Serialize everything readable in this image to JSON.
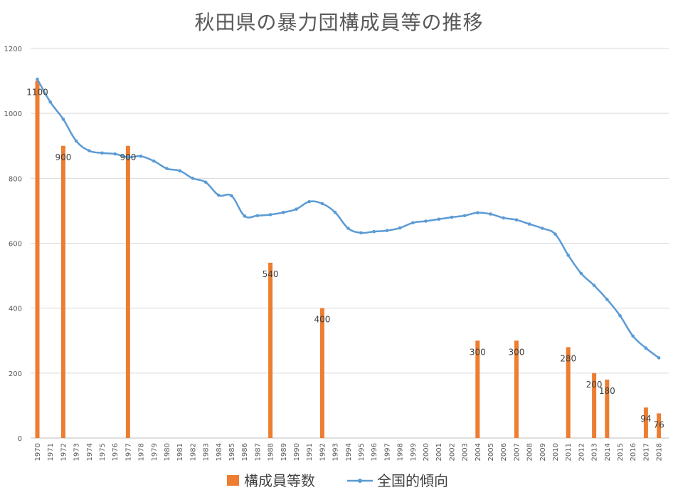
{
  "chart_data": {
    "type": "bar+line",
    "title": "秋田県の暴力団構成員等の推移",
    "ylim": [
      0,
      1200
    ],
    "yticks": [
      0,
      200,
      400,
      600,
      800,
      1000,
      1200
    ],
    "grid": true,
    "legend_position": "bottom",
    "colors": {
      "bar": "#ED7D31",
      "line": "#5B9BD5",
      "grid": "#D9D9D9",
      "axis": "#BFBFBF"
    },
    "categories": [
      "1970",
      "1971",
      "1972",
      "1973",
      "1974",
      "1975",
      "1976",
      "1977",
      "1978",
      "1979",
      "1980",
      "1981",
      "1982",
      "1983",
      "1984",
      "1985",
      "1986",
      "1987",
      "1988",
      "1989",
      "1990",
      "1991",
      "1992",
      "1993",
      "1994",
      "1995",
      "1996",
      "1997",
      "1998",
      "1999",
      "2000",
      "2001",
      "2002",
      "2003",
      "2004",
      "2005",
      "2006",
      "2007",
      "2008",
      "2009",
      "2010",
      "2011",
      "2012",
      "2013",
      "2014",
      "2015",
      "2016",
      "2017",
      "2018"
    ],
    "series": [
      {
        "name": "構成員等数",
        "type": "bar",
        "values": [
          1100,
          null,
          900,
          null,
          null,
          null,
          null,
          900,
          null,
          null,
          null,
          null,
          null,
          null,
          null,
          null,
          null,
          null,
          540,
          null,
          null,
          null,
          400,
          null,
          null,
          null,
          null,
          null,
          null,
          null,
          null,
          null,
          null,
          null,
          300,
          null,
          null,
          300,
          null,
          null,
          null,
          280,
          null,
          200,
          180,
          null,
          null,
          94,
          76
        ]
      },
      {
        "name": "全国的傾向",
        "type": "line",
        "values": [
          1105,
          1035,
          982,
          915,
          885,
          878,
          875,
          865,
          868,
          853,
          830,
          823,
          800,
          788,
          748,
          746,
          684,
          685,
          688,
          695,
          705,
          728,
          722,
          695,
          646,
          632,
          636,
          639,
          647,
          663,
          668,
          674,
          680,
          685,
          694,
          690,
          678,
          672,
          659,
          646,
          628,
          563,
          507,
          470,
          427,
          377,
          314,
          277,
          247
        ]
      }
    ]
  }
}
